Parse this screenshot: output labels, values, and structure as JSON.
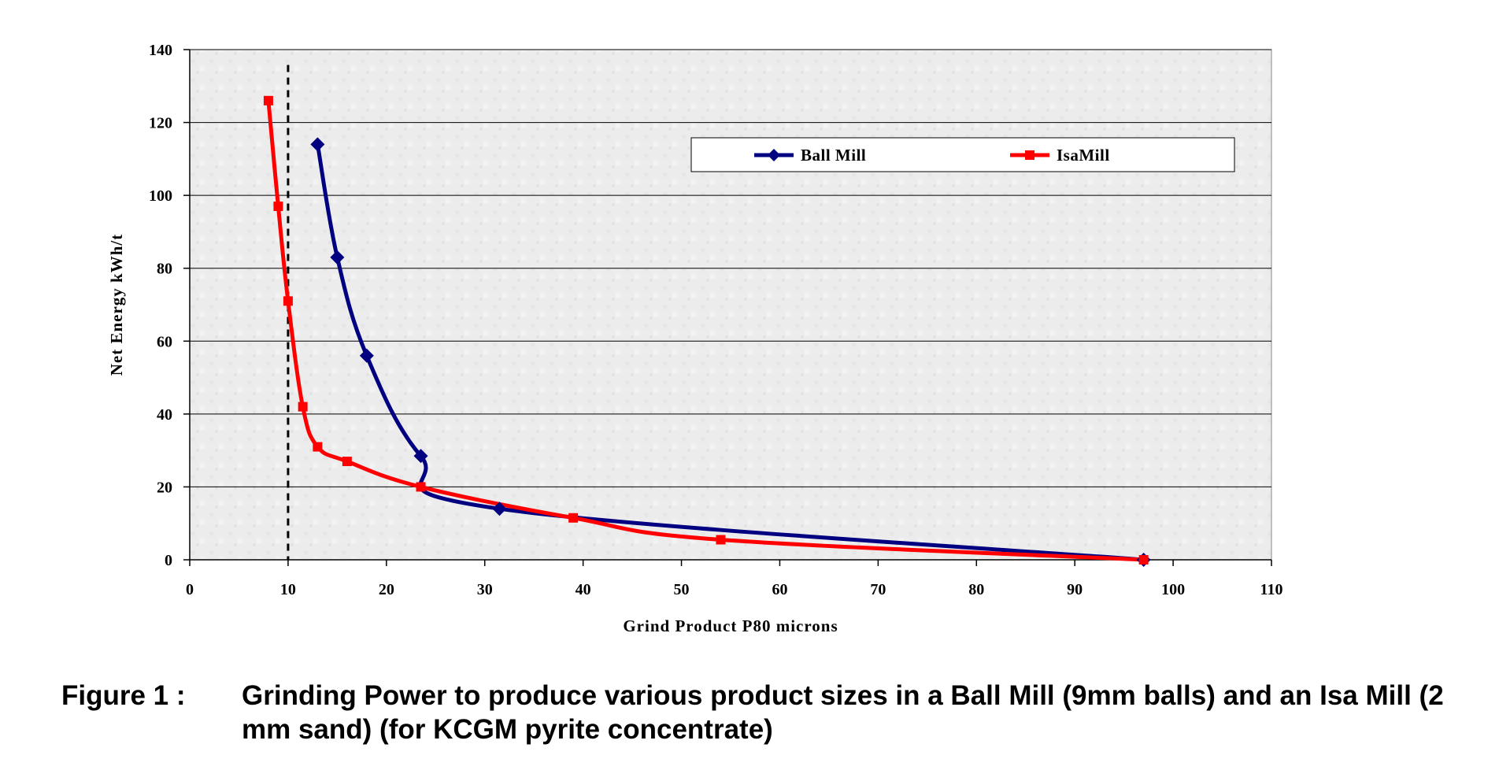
{
  "chart_data": {
    "type": "line",
    "xlabel": "Grind Product P80 microns",
    "ylabel": "Net Energy kWh/t",
    "xlim": [
      0,
      110
    ],
    "ylim": [
      0,
      140
    ],
    "x_ticks": [
      0,
      10,
      20,
      30,
      40,
      50,
      60,
      70,
      80,
      90,
      100,
      110
    ],
    "y_ticks": [
      0,
      20,
      40,
      60,
      80,
      100,
      120,
      140
    ],
    "grid": "horizontal",
    "legend_position": "top-right",
    "reference_line": {
      "x": 10,
      "style": "dashed",
      "color": "#000000"
    },
    "series": [
      {
        "name": "Ball Mill",
        "color": "#000080",
        "marker": "diamond",
        "points": [
          {
            "x": 13,
            "y": 114
          },
          {
            "x": 15,
            "y": 83
          },
          {
            "x": 18,
            "y": 56
          },
          {
            "x": 23.5,
            "y": 28.5
          },
          {
            "x": 31.5,
            "y": 14
          },
          {
            "x": 97,
            "y": 0
          }
        ]
      },
      {
        "name": "IsaMill",
        "color": "#ff0000",
        "marker": "square",
        "points": [
          {
            "x": 8,
            "y": 126
          },
          {
            "x": 9,
            "y": 97
          },
          {
            "x": 10,
            "y": 71
          },
          {
            "x": 11.5,
            "y": 42
          },
          {
            "x": 13,
            "y": 31
          },
          {
            "x": 16,
            "y": 27
          },
          {
            "x": 23.5,
            "y": 20
          },
          {
            "x": 39,
            "y": 11.5
          },
          {
            "x": 54,
            "y": 5.5
          },
          {
            "x": 97,
            "y": 0
          }
        ]
      }
    ]
  },
  "caption": {
    "label": "Figure 1 :",
    "text": "Grinding Power to produce various product sizes in a Ball Mill (9mm balls) and an Isa Mill (2 mm sand) (for KCGM pyrite concentrate)"
  }
}
